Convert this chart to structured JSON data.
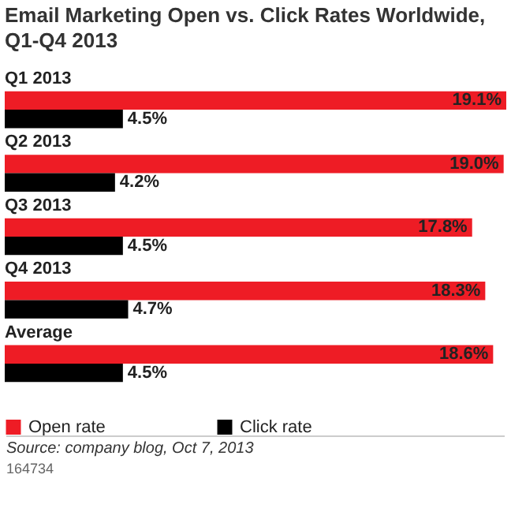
{
  "chart_data": {
    "type": "bar",
    "orientation": "horizontal",
    "title": "Email Marketing Open vs. Click Rates Worldwide, Q1-Q4 2013",
    "categories": [
      "Q1 2013",
      "Q2 2013",
      "Q3 2013",
      "Q4 2013",
      "Average"
    ],
    "series": [
      {
        "name": "Open rate",
        "color": "#ee1c25",
        "values": [
          19.1,
          19.0,
          17.8,
          18.3,
          18.6
        ],
        "value_labels": [
          "19.1%",
          "19.0%",
          "17.8%",
          "18.3%",
          "18.6%"
        ]
      },
      {
        "name": "Click rate",
        "color": "#000000",
        "values": [
          4.5,
          4.2,
          4.5,
          4.7,
          4.5
        ],
        "value_labels": [
          "4.5%",
          "4.2%",
          "4.5%",
          "4.7%",
          "4.5%"
        ]
      }
    ],
    "legend": "bottom",
    "grid": false,
    "annotations": [
      "Source: company blog, Oct 7, 2013",
      "164734"
    ]
  }
}
